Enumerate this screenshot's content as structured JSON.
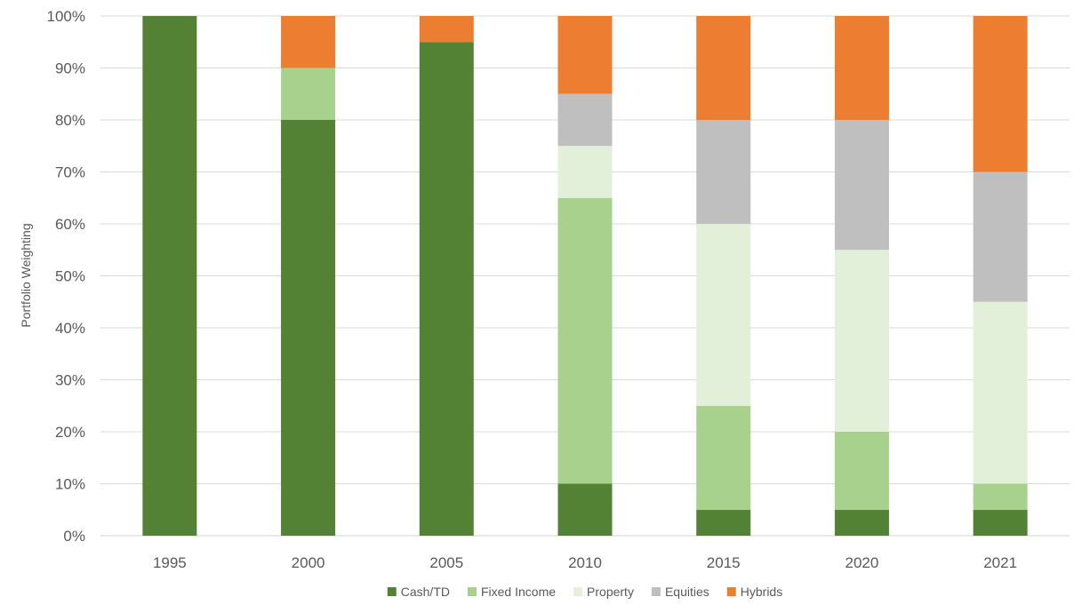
{
  "chart_data": {
    "type": "bar",
    "stacked": true,
    "title": "",
    "xlabel": "",
    "ylabel": "Portfolio Weighting",
    "ylim": [
      0,
      100
    ],
    "y_unit": "%",
    "y_ticks": [
      "0%",
      "10%",
      "20%",
      "30%",
      "40%",
      "50%",
      "60%",
      "70%",
      "80%",
      "90%",
      "100%"
    ],
    "grid": true,
    "legend_position": "bottom",
    "categories": [
      "1995",
      "2000",
      "2005",
      "2010",
      "2015",
      "2020",
      "2021"
    ],
    "series": [
      {
        "name": "Cash/TD",
        "color": "#548235",
        "values": [
          100,
          80,
          95,
          10,
          5,
          5,
          5
        ]
      },
      {
        "name": "Fixed Income",
        "color": "#a9d18e",
        "values": [
          0,
          10,
          0,
          55,
          20,
          15,
          5
        ]
      },
      {
        "name": "Property",
        "color": "#e2efd9",
        "values": [
          0,
          0,
          0,
          10,
          35,
          35,
          35
        ]
      },
      {
        "name": "Equities",
        "color": "#bfbfbf",
        "values": [
          0,
          0,
          0,
          10,
          20,
          25,
          25
        ]
      },
      {
        "name": "Hybrids",
        "color": "#ed7d31",
        "values": [
          0,
          10,
          5,
          15,
          20,
          20,
          30
        ]
      }
    ]
  }
}
